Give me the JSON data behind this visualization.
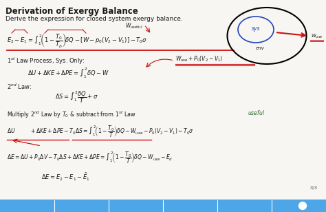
{
  "slide_bg": "#f7f6f2",
  "blue_bar_color": "#4da6e8",
  "text_color": "#1a1a1a",
  "red_color": "#cc1111",
  "blue_color": "#2244bb",
  "green_color": "#226622",
  "page_num": "8/8",
  "title": "Derivation of Exergy Balance",
  "subtitle": "Derive the expression for closed system exergy balance.",
  "sys_label": "sys",
  "env_label": "env"
}
